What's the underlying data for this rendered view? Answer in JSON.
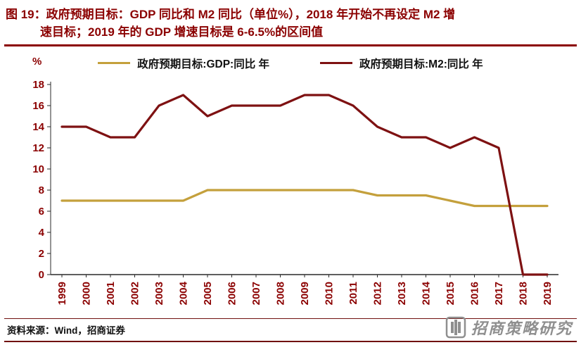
{
  "figure": {
    "title_line1": "图 19：政府预期目标：GDP 同比和 M2 同比（单位%），2018 年开始不再设定 M2 增",
    "title_line2": "速目标；2019 年的 GDP 增速目标是 6-6.5%的区间值",
    "percent_label": "%",
    "source": "资料来源：Wind，招商证券",
    "watermark": "招商策略研究"
  },
  "colors": {
    "title": "#8B0000",
    "axis_text": "#8B0000",
    "rule": "#70110f",
    "axis_line": "#2a2a2a",
    "gdp_line": "#C4A03C",
    "m2_line": "#7E1112"
  },
  "chart_data": {
    "type": "line",
    "title": "政府预期目标: GDP 同比和 M2 同比（单位%）",
    "xlabel": "",
    "ylabel": "%",
    "ylim": [
      0,
      18
    ],
    "yticks": [
      0,
      2,
      4,
      6,
      8,
      10,
      12,
      14,
      16,
      18
    ],
    "grid": false,
    "legend_position": "top",
    "x": [
      1999,
      2000,
      2001,
      2002,
      2003,
      2004,
      2005,
      2006,
      2007,
      2008,
      2009,
      2010,
      2011,
      2012,
      2013,
      2014,
      2015,
      2016,
      2017,
      2018,
      2019
    ],
    "series": [
      {
        "name": "政府预期目标:GDP:同比 年",
        "color": "#C4A03C",
        "values": [
          7,
          7,
          7,
          7,
          7,
          7,
          8,
          8,
          8,
          8,
          8,
          8,
          8,
          7.5,
          7.5,
          7.5,
          7,
          6.5,
          6.5,
          6.5,
          6.5
        ]
      },
      {
        "name": "政府预期目标:M2:同比 年",
        "color": "#7E1112",
        "values": [
          14,
          14,
          13,
          13,
          16,
          17,
          15,
          16,
          16,
          16,
          17,
          17,
          16,
          14,
          13,
          13,
          12,
          13,
          12,
          0,
          0
        ]
      }
    ]
  }
}
